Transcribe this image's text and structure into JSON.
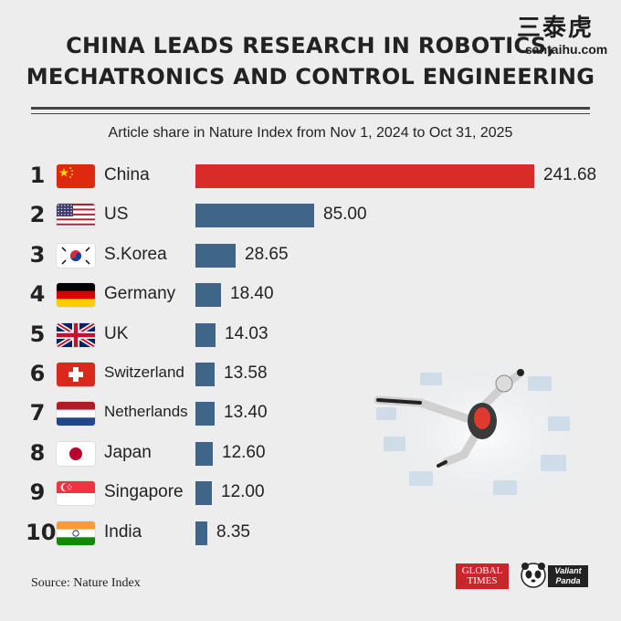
{
  "title_line1": "CHINA LEADS RESEARCH IN ROBOTICS,",
  "title_line2": "MECHATRONICS AND CONTROL ENGINEERING",
  "subtitle": "Article share in Nature Index from Nov 1, 2024 to Oct 31, 2025",
  "source": "Source: Nature Index",
  "watermark_cn": "三泰虎",
  "watermark_en": "santaihu.com",
  "logo_global_times": "GLOBAL TIMES",
  "logo_valiant_panda": "Valiant Panda",
  "colors": {
    "china_bar": "#d92b27",
    "other_bar": "#3f6589",
    "background": "#ededed"
  },
  "chart_data": {
    "type": "bar",
    "orientation": "horizontal",
    "title": "CHINA LEADS RESEARCH IN ROBOTICS, MECHATRONICS AND CONTROL ENGINEERING",
    "subtitle": "Article share in Nature Index from Nov 1, 2024 to Oct 31, 2025",
    "ranks": [
      "1",
      "2",
      "3",
      "4",
      "5",
      "6",
      "7",
      "8",
      "9",
      "10"
    ],
    "categories": [
      "China",
      "US",
      "S.Korea",
      "Germany",
      "UK",
      "Switzerland",
      "Netherlands",
      "Japan",
      "Singapore",
      "India"
    ],
    "flags": [
      "cn",
      "us",
      "kr",
      "de",
      "gb",
      "ch",
      "nl",
      "jp",
      "sg",
      "in"
    ],
    "values": [
      241.68,
      85.0,
      28.65,
      18.4,
      14.03,
      13.58,
      13.4,
      12.6,
      12.0,
      8.35
    ],
    "value_labels": [
      "241.68",
      "85.00",
      "28.65",
      "18.40",
      "14.03",
      "13.58",
      "13.40",
      "12.60",
      "12.00",
      "8.35"
    ],
    "xlim": [
      0,
      241.68
    ],
    "grid": false,
    "legend": "none"
  }
}
